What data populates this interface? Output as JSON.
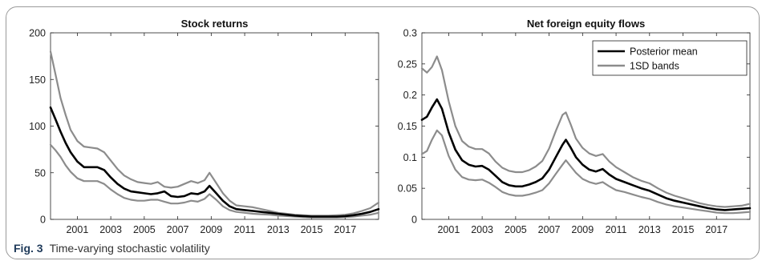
{
  "figure": {
    "label": "Fig. 3",
    "caption": "Time-varying stochastic volatility"
  },
  "legend": {
    "items": [
      {
        "name": "Posterior mean",
        "color": "#000000"
      },
      {
        "name": "1SD bands",
        "color": "#8c8c8c"
      }
    ]
  },
  "chart_data": [
    {
      "type": "line",
      "title": "Stock returns",
      "xlabel": "",
      "ylabel": "",
      "xlim": [
        1999.4,
        2019.0
      ],
      "ylim": [
        0,
        200
      ],
      "xticks": [
        "2001",
        "2003",
        "2005",
        "2007",
        "2009",
        "2011",
        "2013",
        "2015",
        "2017"
      ],
      "yticks": [
        "0",
        "50",
        "100",
        "150",
        "200"
      ],
      "grid": false,
      "x": [
        1999.4,
        1999.7,
        2000.0,
        2000.3,
        2000.6,
        2001.0,
        2001.4,
        2001.8,
        2002.2,
        2002.6,
        2003.0,
        2003.4,
        2003.8,
        2004.2,
        2004.6,
        2005.0,
        2005.4,
        2005.8,
        2006.2,
        2006.6,
        2007.0,
        2007.4,
        2007.8,
        2008.2,
        2008.6,
        2008.9,
        2009.3,
        2009.7,
        2010.1,
        2010.5,
        2011.0,
        2011.5,
        2012.0,
        2012.5,
        2013.0,
        2013.5,
        2014.0,
        2014.5,
        2015.0,
        2015.5,
        2016.0,
        2016.5,
        2017.0,
        2017.5,
        2018.0,
        2018.5,
        2019.0
      ],
      "series": [
        {
          "name": "Posterior mean",
          "color": "#000000",
          "values": [
            120,
            107,
            94,
            82,
            72,
            62,
            56,
            56,
            56,
            53,
            45,
            38,
            33,
            30,
            29,
            28,
            27,
            28,
            30,
            25,
            24,
            25,
            28,
            27,
            30,
            36,
            28,
            20,
            14,
            11,
            10,
            9,
            8,
            7,
            6,
            5,
            4,
            3.5,
            3,
            3,
            3,
            3,
            3.5,
            4.5,
            6,
            8,
            11
          ]
        },
        {
          "name": "1SD bands upper",
          "color": "#8c8c8c",
          "values": [
            180,
            155,
            130,
            112,
            96,
            84,
            78,
            77,
            76,
            72,
            63,
            54,
            47,
            43,
            40,
            39,
            38,
            40,
            35,
            34,
            35,
            38,
            41,
            39,
            42,
            50,
            39,
            28,
            20,
            15,
            14,
            13,
            11,
            9,
            7,
            6,
            5,
            4.5,
            4,
            4,
            4,
            4.5,
            5,
            6.5,
            9,
            12,
            18
          ]
        },
        {
          "name": "1SD bands lower",
          "color": "#8c8c8c",
          "values": [
            80,
            74,
            67,
            58,
            51,
            44,
            41,
            41,
            41,
            38,
            32,
            27,
            23,
            21,
            20,
            20,
            21,
            21,
            19,
            17,
            17,
            18,
            20,
            19,
            22,
            27,
            21,
            14,
            10,
            8,
            7,
            6,
            5.5,
            5,
            4,
            3.5,
            3,
            2.5,
            2,
            2,
            2,
            2,
            2.5,
            3,
            4,
            5,
            7
          ]
        }
      ]
    },
    {
      "type": "line",
      "title": "Net foreign equity flows",
      "xlabel": "",
      "ylabel": "",
      "xlim": [
        1999.4,
        2019.0
      ],
      "ylim": [
        0,
        0.3
      ],
      "xticks": [
        "2001",
        "2003",
        "2005",
        "2007",
        "2009",
        "2011",
        "2013",
        "2015",
        "2017"
      ],
      "yticks": [
        "0",
        "0.05",
        "0.1",
        "0.15",
        "0.2",
        "0.25",
        "0.3"
      ],
      "grid": false,
      "legend": "top-right",
      "x": [
        1999.4,
        1999.7,
        2000.0,
        2000.3,
        2000.6,
        2001.0,
        2001.4,
        2001.8,
        2002.2,
        2002.6,
        2003.0,
        2003.4,
        2003.8,
        2004.2,
        2004.6,
        2005.0,
        2005.4,
        2005.8,
        2006.2,
        2006.6,
        2007.0,
        2007.4,
        2007.8,
        2008.0,
        2008.3,
        2008.6,
        2009.0,
        2009.4,
        2009.8,
        2010.2,
        2010.6,
        2011.0,
        2011.5,
        2012.0,
        2012.5,
        2013.0,
        2013.5,
        2014.0,
        2014.5,
        2015.0,
        2015.5,
        2016.0,
        2016.5,
        2017.0,
        2017.5,
        2018.0,
        2018.5,
        2019.0
      ],
      "series": [
        {
          "name": "Posterior mean",
          "color": "#000000",
          "values": [
            0.16,
            0.165,
            0.18,
            0.193,
            0.178,
            0.14,
            0.112,
            0.095,
            0.088,
            0.085,
            0.086,
            0.08,
            0.07,
            0.06,
            0.055,
            0.053,
            0.053,
            0.056,
            0.06,
            0.066,
            0.08,
            0.1,
            0.12,
            0.128,
            0.115,
            0.1,
            0.088,
            0.08,
            0.077,
            0.081,
            0.072,
            0.065,
            0.06,
            0.055,
            0.05,
            0.046,
            0.04,
            0.034,
            0.03,
            0.027,
            0.024,
            0.021,
            0.018,
            0.016,
            0.015,
            0.016,
            0.017,
            0.018
          ]
        },
        {
          "name": "1SD bands upper",
          "color": "#8c8c8c",
          "values": [
            0.243,
            0.236,
            0.245,
            0.262,
            0.24,
            0.19,
            0.15,
            0.126,
            0.117,
            0.113,
            0.113,
            0.106,
            0.093,
            0.083,
            0.078,
            0.076,
            0.076,
            0.079,
            0.085,
            0.094,
            0.114,
            0.142,
            0.168,
            0.172,
            0.152,
            0.13,
            0.115,
            0.106,
            0.102,
            0.105,
            0.093,
            0.084,
            0.076,
            0.068,
            0.062,
            0.058,
            0.05,
            0.043,
            0.038,
            0.034,
            0.03,
            0.026,
            0.023,
            0.021,
            0.02,
            0.021,
            0.022,
            0.025
          ]
        },
        {
          "name": "1SD bands lower",
          "color": "#8c8c8c",
          "values": [
            0.105,
            0.11,
            0.128,
            0.143,
            0.135,
            0.102,
            0.08,
            0.068,
            0.064,
            0.063,
            0.064,
            0.059,
            0.052,
            0.044,
            0.04,
            0.038,
            0.038,
            0.04,
            0.043,
            0.047,
            0.058,
            0.073,
            0.088,
            0.095,
            0.085,
            0.075,
            0.065,
            0.06,
            0.057,
            0.06,
            0.053,
            0.047,
            0.044,
            0.04,
            0.036,
            0.033,
            0.028,
            0.024,
            0.021,
            0.019,
            0.017,
            0.015,
            0.013,
            0.011,
            0.01,
            0.01,
            0.011,
            0.012
          ]
        }
      ]
    }
  ]
}
